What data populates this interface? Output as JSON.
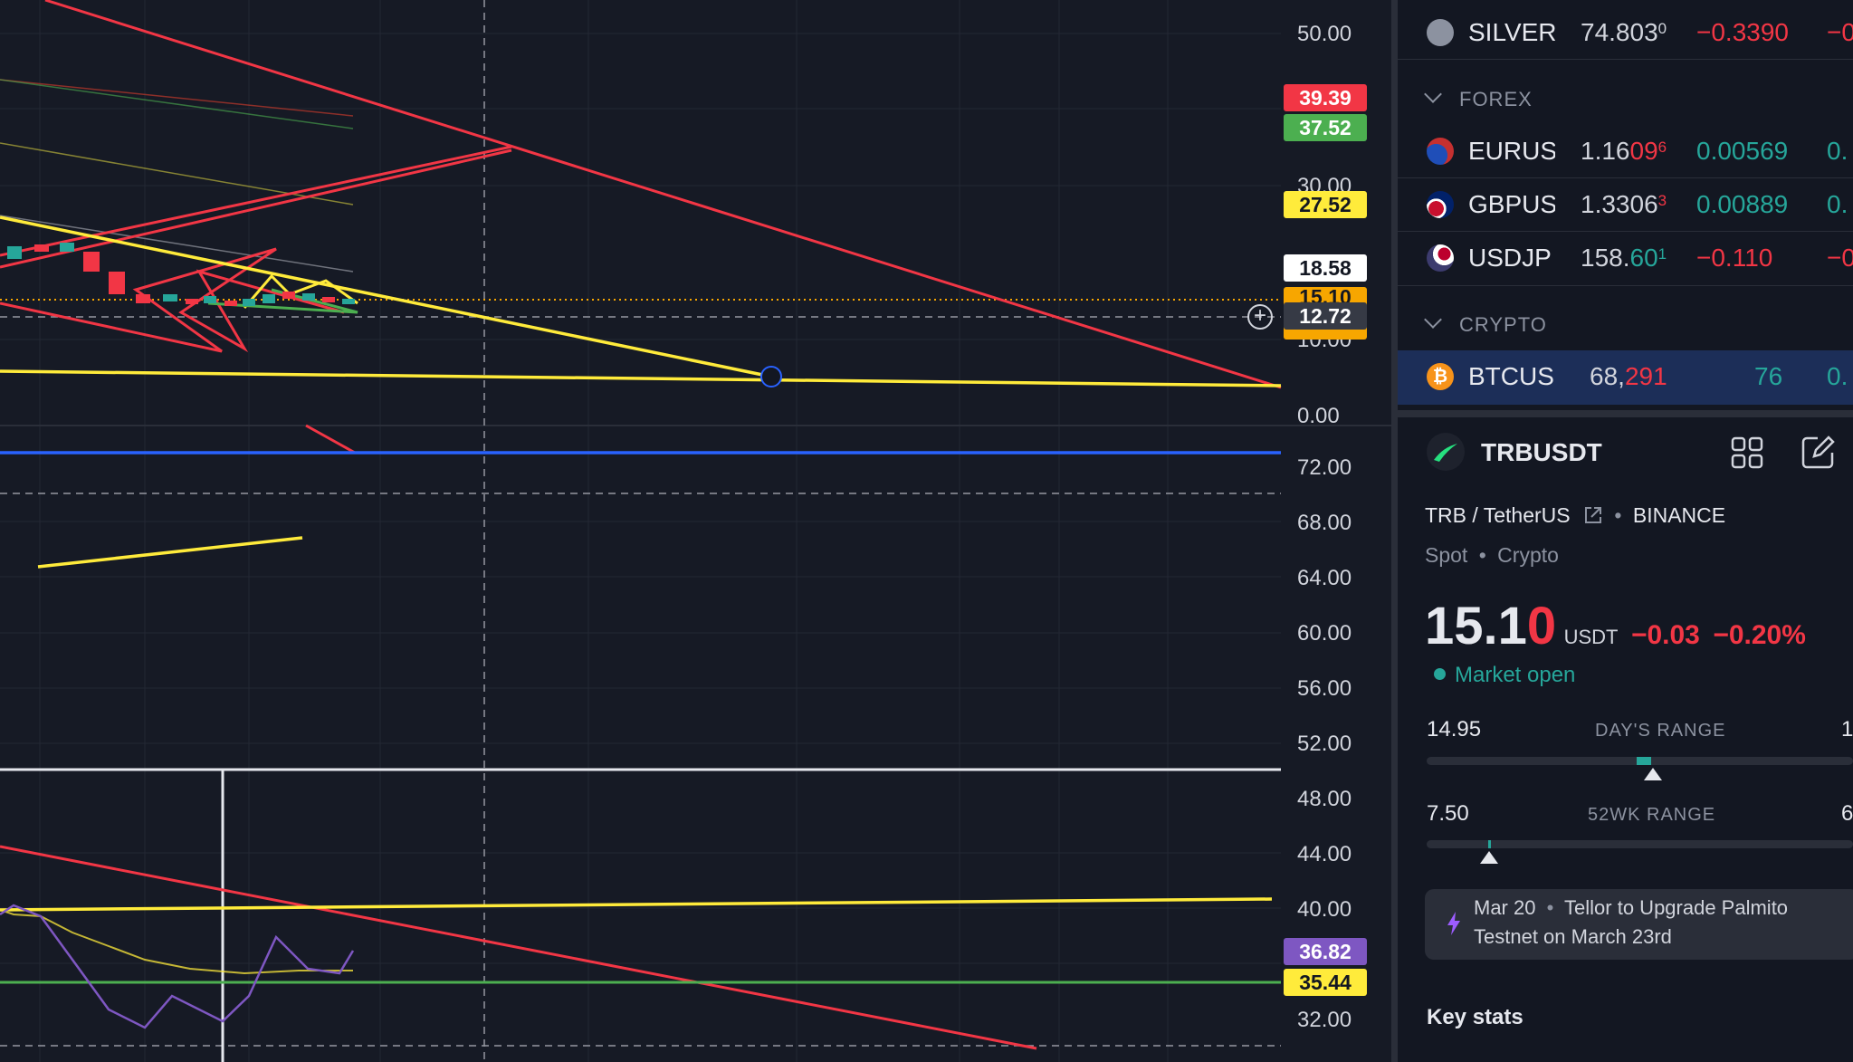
{
  "price_axis_top": [
    "50.00",
    "30.00",
    "10.00",
    "0.00"
  ],
  "price_axis_bottom": [
    "72.00",
    "68.00",
    "64.00",
    "60.00",
    "56.00",
    "52.00",
    "48.00",
    "44.00",
    "40.00",
    "32.00"
  ],
  "price_tags": [
    {
      "label": "39.39",
      "bg": "#f23645",
      "fg": "#ffffff"
    },
    {
      "label": "37.52",
      "bg": "#4caf50",
      "fg": "#ffffff"
    },
    {
      "label": "27.52",
      "bg": "#ffeb3b",
      "fg": "#131722"
    },
    {
      "label": "18.58",
      "bg": "#ffffff",
      "fg": "#131722"
    },
    {
      "label": "15.10",
      "bg": "#f7a600",
      "fg": "#131722"
    },
    {
      "label": "12.72",
      "bg": "#363a45",
      "fg": "#ffffff"
    },
    {
      "label": "36.82",
      "bg": "#7e57c2",
      "fg": "#ffffff"
    },
    {
      "label": "35.44",
      "bg": "#ffeb3b",
      "fg": "#131722"
    }
  ],
  "watchlist": {
    "rows": [
      {
        "symbol": "SILVER",
        "icon": "silver-icon",
        "last_main": "74.803",
        "last_sup": "0",
        "last_dim": "",
        "change": "−0.3390",
        "change_pct": "−0.",
        "direction": "down"
      },
      {
        "symbol": "EURUS",
        "icon": "eu-us-flag-icon",
        "last_main": "1.16",
        "last_sup": "6",
        "last_dim": "09",
        "change": "0.00569",
        "change_pct": "0.",
        "direction": "up"
      },
      {
        "symbol": "GBPUS",
        "icon": "gb-us-flag-icon",
        "last_main": "1.3306",
        "last_sup": "3",
        "last_dim": "",
        "change": "0.00889",
        "change_pct": "0.",
        "direction": "up"
      },
      {
        "symbol": "USDJP",
        "icon": "us-jp-flag-icon",
        "last_main": "158.",
        "last_sup": "1",
        "last_dim": "60",
        "change": "−0.110",
        "change_pct": "−0.",
        "direction": "down"
      },
      {
        "symbol": "BTCUS",
        "icon": "bitcoin-icon",
        "last_main": "68,",
        "last_sup": "",
        "last_dim": "291",
        "change": "76",
        "change_pct": "0.",
        "direction": "up"
      }
    ],
    "sections": {
      "forex": "FOREX",
      "crypto": "CRYPTO"
    }
  },
  "details": {
    "symbol": "TRBUSDT",
    "description": "TRB / TetherUS",
    "exchange": "BINANCE",
    "type_market": "Spot",
    "type_class": "Crypto",
    "price_main": "15.1",
    "price_last_digit": "0",
    "currency": "USDT",
    "change": "−0.03",
    "change_pct": "−0.20%",
    "market_status": "Market open",
    "days_range": {
      "low": "14.95",
      "label": "DAY'S RANGE",
      "high": "1"
    },
    "wk_range": {
      "low": "7.50",
      "label": "52WK RANGE",
      "high": "6"
    },
    "news": {
      "date": "Mar 20",
      "headline_line1": "Tellor to Upgrade Palmito",
      "headline_line2": "Testnet on March 23rd"
    },
    "key_stats": "Key stats"
  },
  "colors": {
    "up": "#26a69a",
    "down": "#f23645",
    "accent": "#2962ff"
  }
}
